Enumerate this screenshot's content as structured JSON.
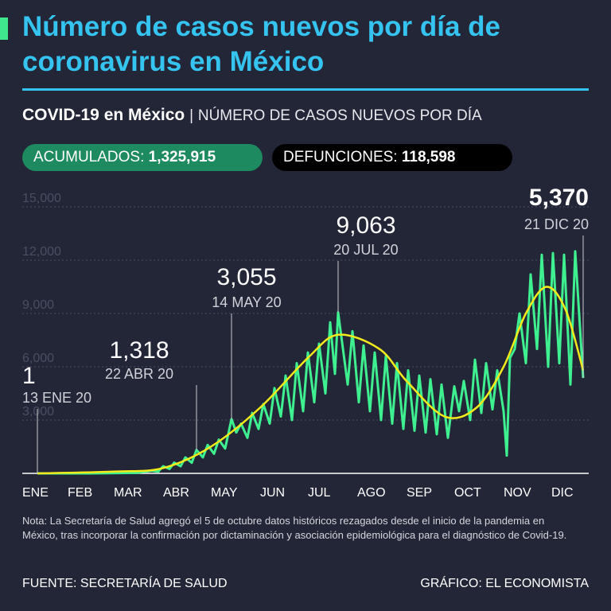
{
  "header": {
    "title": "Número de casos nuevos por día de coronavirus en México",
    "subtitle_bold": "COVID-19 en México",
    "subtitle_sep": "|",
    "subtitle_rest": "NÚMERO DE CASOS NUEVOS POR DÍA"
  },
  "stats": {
    "accumulated_label": "ACUMULADOS:",
    "accumulated_value": "1,325,915",
    "deaths_label": "DEFUNCIONES:",
    "deaths_value": "118,598"
  },
  "colors": {
    "background": "#232637",
    "title": "#35c3ef",
    "daily_series": "#3ef08f",
    "trend": "#f2ea1a",
    "accumulated_pill": "#1e8a5f",
    "deaths_pill": "#000000"
  },
  "chart_data": {
    "type": "line",
    "title": "",
    "xlabel": "",
    "ylabel": "",
    "ylim": [
      0,
      15000
    ],
    "yticks": [
      "3,000",
      "6,000",
      "9,000",
      "12,000",
      "15,000"
    ],
    "ytick_values": [
      3000,
      6000,
      9000,
      12000,
      15000
    ],
    "xticks": [
      "ENE",
      "FEB",
      "MAR",
      "ABR",
      "MAY",
      "JUN",
      "JUL",
      "AGO",
      "SEP",
      "OCT",
      "NOV",
      "DIC"
    ],
    "grid": "horizontal dotted",
    "series": [
      {
        "kind": "daily",
        "points": [
          [
            "2020-01-13",
            1
          ],
          [
            "2020-02-15",
            0
          ],
          [
            "2020-03-15",
            30
          ],
          [
            "2020-03-25",
            150
          ],
          [
            "2020-03-29",
            100
          ],
          [
            "2020-04-01",
            400
          ],
          [
            "2020-04-05",
            250
          ],
          [
            "2020-04-08",
            600
          ],
          [
            "2020-04-12",
            400
          ],
          [
            "2020-04-15",
            900
          ],
          [
            "2020-04-19",
            600
          ],
          [
            "2020-04-22",
            1318
          ],
          [
            "2020-04-26",
            900
          ],
          [
            "2020-04-29",
            1600
          ],
          [
            "2020-05-03",
            1100
          ],
          [
            "2020-05-06",
            1900
          ],
          [
            "2020-05-10",
            1400
          ],
          [
            "2020-05-14",
            3055
          ],
          [
            "2020-05-17",
            2300
          ],
          [
            "2020-05-20",
            2800
          ],
          [
            "2020-05-24",
            2000
          ],
          [
            "2020-05-27",
            3400
          ],
          [
            "2020-05-31",
            2500
          ],
          [
            "2020-06-03",
            3900
          ],
          [
            "2020-06-07",
            2800
          ],
          [
            "2020-06-10",
            4800
          ],
          [
            "2020-06-14",
            3200
          ],
          [
            "2020-06-17",
            5500
          ],
          [
            "2020-06-21",
            3000
          ],
          [
            "2020-06-24",
            6200
          ],
          [
            "2020-06-28",
            3500
          ],
          [
            "2020-07-01",
            6800
          ],
          [
            "2020-07-05",
            4000
          ],
          [
            "2020-07-08",
            7300
          ],
          [
            "2020-07-12",
            4500
          ],
          [
            "2020-07-15",
            8500
          ],
          [
            "2020-07-18",
            5600
          ],
          [
            "2020-07-20",
            9063
          ],
          [
            "2020-07-26",
            5000
          ],
          [
            "2020-07-29",
            8000
          ],
          [
            "2020-08-02",
            4000
          ],
          [
            "2020-08-05",
            7200
          ],
          [
            "2020-08-09",
            3500
          ],
          [
            "2020-08-12",
            6800
          ],
          [
            "2020-08-16",
            3000
          ],
          [
            "2020-08-19",
            6600
          ],
          [
            "2020-08-23",
            2800
          ],
          [
            "2020-08-26",
            6200
          ],
          [
            "2020-08-30",
            2500
          ],
          [
            "2020-09-02",
            5800
          ],
          [
            "2020-09-06",
            2400
          ],
          [
            "2020-09-09",
            5500
          ],
          [
            "2020-09-13",
            2300
          ],
          [
            "2020-09-16",
            5300
          ],
          [
            "2020-09-20",
            2200
          ],
          [
            "2020-09-23",
            5000
          ],
          [
            "2020-09-27",
            2000
          ],
          [
            "2020-10-01",
            4900
          ],
          [
            "2020-10-04",
            3500
          ],
          [
            "2020-10-07",
            5200
          ],
          [
            "2020-10-11",
            3000
          ],
          [
            "2020-10-14",
            6400
          ],
          [
            "2020-10-18",
            3400
          ],
          [
            "2020-10-21",
            6200
          ],
          [
            "2020-10-25",
            3600
          ],
          [
            "2020-10-28",
            5800
          ],
          [
            "2020-11-01",
            3500
          ],
          [
            "2020-11-03",
            1000
          ],
          [
            "2020-11-05",
            6500
          ],
          [
            "2020-11-08",
            7000
          ],
          [
            "2020-11-11",
            9000
          ],
          [
            "2020-11-15",
            6200
          ],
          [
            "2020-11-18",
            11200
          ],
          [
            "2020-11-22",
            7000
          ],
          [
            "2020-11-25",
            12300
          ],
          [
            "2020-11-29",
            6000
          ],
          [
            "2020-12-02",
            12400
          ],
          [
            "2020-12-06",
            6200
          ],
          [
            "2020-12-09",
            12300
          ],
          [
            "2020-12-13",
            5000
          ],
          [
            "2020-12-16",
            12500
          ],
          [
            "2020-12-21",
            5370
          ]
        ]
      },
      {
        "kind": "trend",
        "points": [
          [
            "2020-01-13",
            0
          ],
          [
            "2020-03-01",
            100
          ],
          [
            "2020-04-01",
            300
          ],
          [
            "2020-05-01",
            1500
          ],
          [
            "2020-06-01",
            3700
          ],
          [
            "2020-07-01",
            6500
          ],
          [
            "2020-07-20",
            7800
          ],
          [
            "2020-08-15",
            7000
          ],
          [
            "2020-09-01",
            5200
          ],
          [
            "2020-09-25",
            3200
          ],
          [
            "2020-10-15",
            3700
          ],
          [
            "2020-11-01",
            6000
          ],
          [
            "2020-11-15",
            9000
          ],
          [
            "2020-11-28",
            10500
          ],
          [
            "2020-12-10",
            9200
          ],
          [
            "2020-12-21",
            5800
          ]
        ]
      }
    ],
    "annotations": [
      {
        "value": "1",
        "date": "13 ENE 20",
        "x": "2020-01-13",
        "y": 1
      },
      {
        "value": "1,318",
        "date": "22 ABR 20",
        "x": "2020-04-22",
        "y": 1318
      },
      {
        "value": "3,055",
        "date": "14 MAY 20",
        "x": "2020-05-14",
        "y": 3055
      },
      {
        "value": "9,063",
        "date": "20 JUL 20",
        "x": "2020-07-20",
        "y": 9063
      },
      {
        "value": "5,370",
        "date": "21 DIC 20",
        "x": "2020-12-21",
        "y": 5370
      }
    ]
  },
  "footer": {
    "note": "Nota: La Secretaría de Salud agregó el 5 de octubre datos históricos rezagados desde el inicio de la pandemia en México, tras incorporar la confirmación por dictaminación y asociación epidemiológica para el diagnóstico de Covid-19.",
    "source": "FUENTE: SECRETARÍA DE SALUD",
    "credit": "GRÁFICO: EL ECONOMISTA"
  }
}
